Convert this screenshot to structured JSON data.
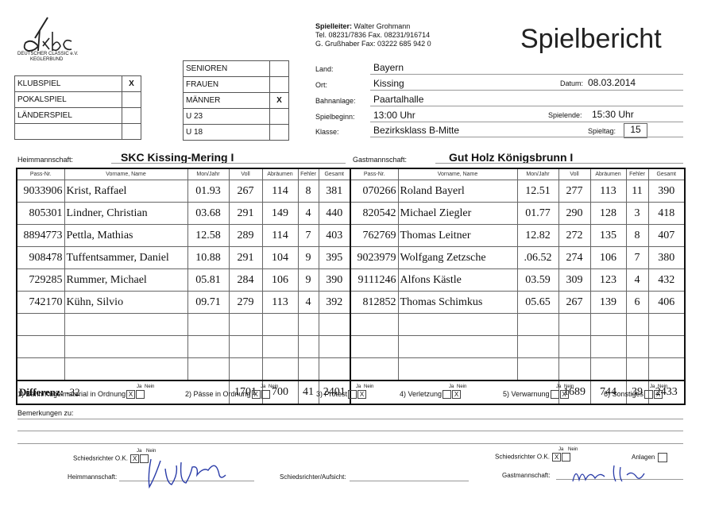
{
  "logo": {
    "initials": "dkbc",
    "line1": "DEUTSCHER CLASSIC e.V.",
    "line2": "KEGLERBUND"
  },
  "title": "Spielbericht",
  "spielleiter": {
    "label": "Spielleiter:",
    "name": "Walter Grohmann",
    "tel": "Tel. 08231/7836 Fax. 08231/916714",
    "alt": "G. Grußhaber  Fax: 03222 685 942 0"
  },
  "game_type": [
    {
      "label": "KLUBSPIEL",
      "mark": "X"
    },
    {
      "label": "POKALSPIEL",
      "mark": ""
    },
    {
      "label": "LÄNDERSPIEL",
      "mark": ""
    }
  ],
  "category": [
    {
      "label": "SENIOREN",
      "mark": ""
    },
    {
      "label": "FRAUEN",
      "mark": ""
    },
    {
      "label": "MÄNNER",
      "mark": "X"
    },
    {
      "label": "U 23",
      "mark": ""
    },
    {
      "label": "U 18",
      "mark": ""
    }
  ],
  "info": {
    "land_label": "Land:",
    "land": "Bayern",
    "ort_label": "Ort:",
    "ort": "Kissing",
    "bahn_label": "Bahnanlage:",
    "bahn": "Paartalhalle",
    "beginn_label": "Spielbeginn:",
    "beginn": "13:00 Uhr",
    "klasse_label": "Klasse:",
    "klasse": "Bezirksklass B-Mitte",
    "datum_label": "Datum:",
    "datum": "08.03.2014",
    "ende_label": "Spielende:",
    "ende": "15:30 Uhr",
    "tag_label": "Spieltag:",
    "tag": "15"
  },
  "home": {
    "label": "Heimmannschaft:",
    "team": "SKC Kissing-Mering I",
    "players": [
      {
        "pass": "9033906",
        "name": "Krist, Raffael",
        "mj": "01.93",
        "voll": "267",
        "abr": "114",
        "fehler": "8",
        "ges": "381"
      },
      {
        "pass": "805301",
        "name": "Lindner, Christian",
        "mj": "03.68",
        "voll": "291",
        "abr": "149",
        "fehler": "4",
        "ges": "440"
      },
      {
        "pass": "8894773",
        "name": "Pettla, Mathias",
        "mj": "12.58",
        "voll": "289",
        "abr": "114",
        "fehler": "7",
        "ges": "403"
      },
      {
        "pass": "908478",
        "name": "Tuffentsammer, Daniel",
        "mj": "10.88",
        "voll": "291",
        "abr": "104",
        "fehler": "9",
        "ges": "395"
      },
      {
        "pass": "729285",
        "name": "Rummer, Michael",
        "mj": "05.81",
        "voll": "284",
        "abr": "106",
        "fehler": "9",
        "ges": "390"
      },
      {
        "pass": "742170",
        "name": "Kühn, Silvio",
        "mj": "09.71",
        "voll": "279",
        "abr": "113",
        "fehler": "4",
        "ges": "392"
      }
    ],
    "diff_label": "Differenz:",
    "diff": "-32",
    "sum": {
      "voll": "1701",
      "abr": "700",
      "fehler": "41",
      "ges": "2401"
    }
  },
  "guest": {
    "label": "Gastmannschaft:",
    "team": "Gut Holz Königsbrunn I",
    "players": [
      {
        "pass": "070266",
        "name": "Roland Bayerl",
        "mj": "12.51",
        "voll": "277",
        "abr": "113",
        "fehler": "11",
        "ges": "390"
      },
      {
        "pass": "820542",
        "name": "Michael Ziegler",
        "mj": "01.77",
        "voll": "290",
        "abr": "128",
        "fehler": "3",
        "ges": "418"
      },
      {
        "pass": "762769",
        "name": "Thomas Leitner",
        "mj": "12.82",
        "voll": "272",
        "abr": "135",
        "fehler": "8",
        "ges": "407"
      },
      {
        "pass": "9023979",
        "name": "Wolfgang Zetzsche",
        "mj": ".06.52",
        "voll": "274",
        "abr": "106",
        "fehler": "7",
        "ges": "380"
      },
      {
        "pass": "9111246",
        "name": "Alfons Kästle",
        "mj": "03.59",
        "voll": "309",
        "abr": "123",
        "fehler": "4",
        "ges": "432"
      },
      {
        "pass": "812852",
        "name": "Thomas Schimkus",
        "mj": "05.65",
        "voll": "267",
        "abr": "139",
        "fehler": "6",
        "ges": "406"
      }
    ],
    "sum": {
      "voll": "1689",
      "abr": "744",
      "fehler": "39",
      "ges": "2433"
    }
  },
  "columns": {
    "pass": "Pass-Nr.",
    "name": "Vorname, Name",
    "mj": "Mon/Jahr",
    "voll": "Voll",
    "abr": "Abräumen",
    "fehler": "Fehler",
    "ges": "Gesamt"
  },
  "checks": {
    "ja": "Ja",
    "nein": "Nein",
    "items": [
      {
        "label": "1) Bahn/Kugelmaterial in Ordnung",
        "ja": "X",
        "nein": ""
      },
      {
        "label": "2) Pässe in Ordnung",
        "ja": "X",
        "nein": ""
      },
      {
        "label": "3) Protest",
        "ja": "",
        "nein": "X"
      },
      {
        "label": "4) Verletzung",
        "ja": "",
        "nein": "X"
      },
      {
        "label": "5) Verwarnung",
        "ja": "",
        "nein": "X"
      },
      {
        "label": "6) Sonstiges",
        "ja": "",
        "nein": "X"
      }
    ]
  },
  "bemerkungen": "Bemerkungen zu:",
  "footer": {
    "sr_ok": "Schiedsrichter O.K.",
    "home_sr_ja": "X",
    "home_sr_nein": "",
    "guest_sr_ja": "X",
    "guest_sr_nein": "",
    "heim": "Heimmannschaft:",
    "sr_aufsicht": "Schiedsrichter/Aufsicht:",
    "gast": "Gastmannschaft:",
    "anlagen": "Anlagen"
  }
}
